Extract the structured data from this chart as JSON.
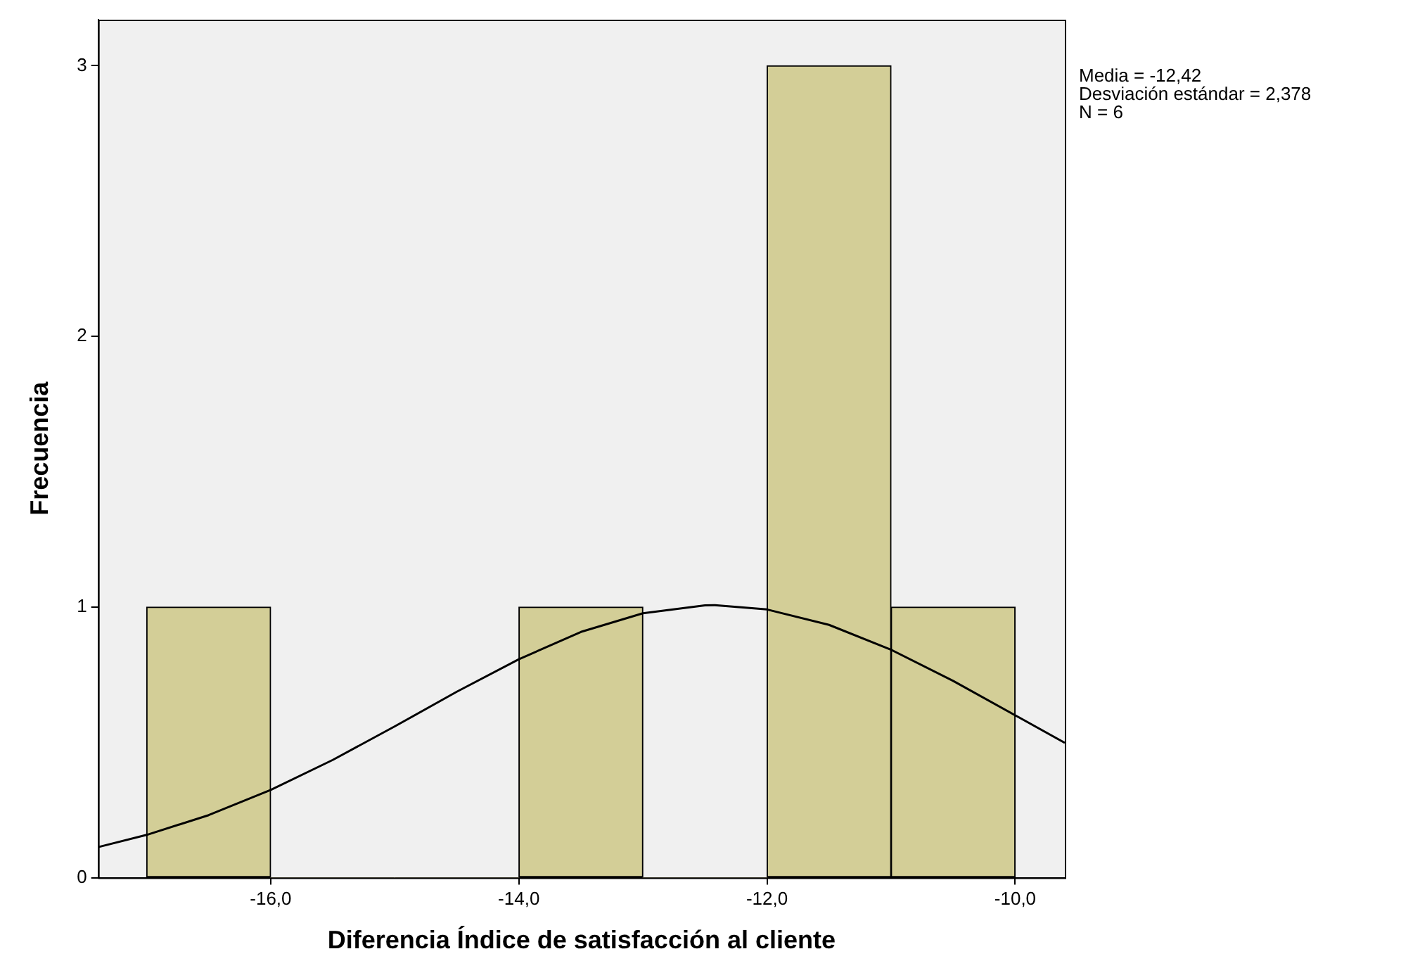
{
  "chart_data": {
    "type": "histogram",
    "xlabel": "Diferencia Índice de satisfacción al cliente",
    "ylabel": "Frecuencia",
    "annotations": [
      "Media = -12,42",
      "Desviación estándar = 2,378",
      "N = 6"
    ],
    "bins": [
      -17,
      -16,
      -15,
      -14,
      -13,
      -12,
      -11,
      -10
    ],
    "values": [
      1,
      0,
      0,
      1,
      0,
      3,
      1
    ],
    "color": "#d3ce97",
    "series": [
      {
        "type": "line",
        "color": "#000000",
        "x": [
          -17.39,
          -17,
          -16.5,
          -16,
          -15.5,
          -15,
          -14.5,
          -14,
          -13.5,
          -13,
          -12.5,
          -12.42,
          -12,
          -11.5,
          -11,
          -10.5,
          -10,
          -9.6
        ],
        "values": [
          0.113,
          0.158,
          0.231,
          0.324,
          0.435,
          0.559,
          0.687,
          0.807,
          0.908,
          0.977,
          1.006,
          1.007,
          0.991,
          0.934,
          0.842,
          0.727,
          0.6,
          0.498
        ]
      }
    ],
    "xlim": [
      -17.39,
      -9.6
    ],
    "xticks": [
      {
        "value": -16,
        "label": "-16,0"
      },
      {
        "value": -14,
        "label": "-14,0"
      },
      {
        "value": -12,
        "label": "-12,0"
      },
      {
        "value": -10,
        "label": "-10,0"
      }
    ],
    "ylim": [
      0,
      3.17
    ],
    "yticks": [
      0,
      1,
      2,
      3
    ],
    "legend": false
  }
}
